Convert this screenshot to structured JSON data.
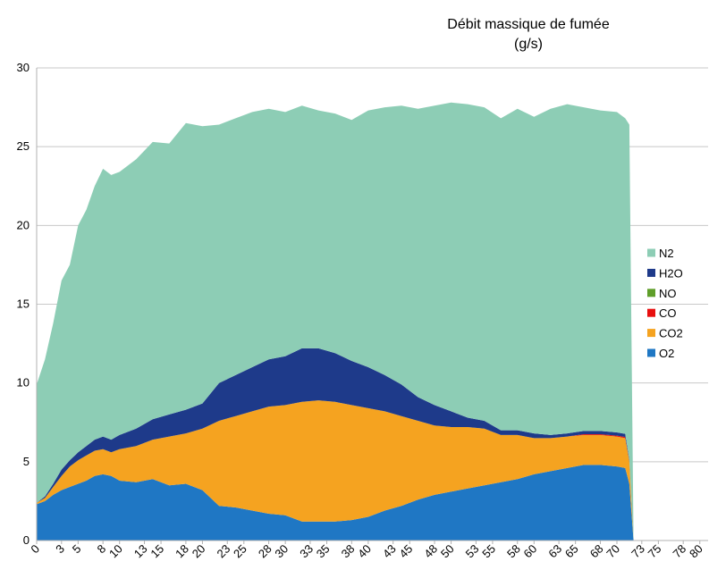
{
  "chart_data": {
    "type": "area",
    "stacked": true,
    "title": "Débit massique de fumée",
    "subtitle": "(g/s)",
    "xlabel": "",
    "ylabel": "",
    "xlim": [
      0,
      81
    ],
    "ylim": [
      0,
      30
    ],
    "yticks": [
      0,
      5,
      10,
      15,
      20,
      25,
      30
    ],
    "xtick_labels": [
      "0",
      "3",
      "5",
      "8",
      "10",
      "13",
      "15",
      "18",
      "20",
      "23",
      "25",
      "28",
      "30",
      "33",
      "35",
      "38",
      "40",
      "43",
      "45",
      "48",
      "50",
      "53",
      "55",
      "58",
      "60",
      "63",
      "65",
      "68",
      "70",
      "73",
      "75",
      "78",
      "80"
    ],
    "grid": {
      "horizontal": true,
      "vertical": false
    },
    "legend_position": "right",
    "total_envelope": {
      "x": [
        0,
        1,
        2,
        3,
        4,
        5,
        6,
        7,
        8,
        9,
        10,
        12,
        14,
        16,
        18,
        20,
        22,
        24,
        26,
        28,
        30,
        32,
        34,
        36,
        38,
        40,
        42,
        44,
        46,
        48,
        50,
        52,
        54,
        56,
        58,
        60,
        62,
        64,
        66,
        68,
        70,
        71,
        71.5,
        72
      ],
      "y": [
        9.9,
        11.5,
        13.8,
        16.5,
        17.5,
        20,
        21,
        22.5,
        23.6,
        23.2,
        23.4,
        24.2,
        25.3,
        25.2,
        26.5,
        26.3,
        26.4,
        26.8,
        27.2,
        27.4,
        27.2,
        27.6,
        27.3,
        27.1,
        26.7,
        27.3,
        27.5,
        27.6,
        27.4,
        27.6,
        27.8,
        27.7,
        27.5,
        26.8,
        27.4,
        26.9,
        27.4,
        27.7,
        27.5,
        27.3,
        27.2,
        26.8,
        26.4,
        0
      ]
    },
    "x": [
      0,
      1,
      2,
      3,
      4,
      5,
      6,
      7,
      8,
      9,
      10,
      12,
      14,
      16,
      18,
      20,
      22,
      24,
      26,
      28,
      30,
      32,
      34,
      36,
      38,
      40,
      42,
      44,
      46,
      48,
      50,
      52,
      54,
      56,
      58,
      60,
      62,
      64,
      66,
      68,
      70,
      71,
      71.5,
      72
    ],
    "series": [
      {
        "name": "O2",
        "color": "#1f77c4",
        "values": [
          2.3,
          2.5,
          2.9,
          3.2,
          3.4,
          3.6,
          3.8,
          4.1,
          4.2,
          4.1,
          3.8,
          3.7,
          3.9,
          3.5,
          3.6,
          3.2,
          2.2,
          2.1,
          1.9,
          1.7,
          1.6,
          1.2,
          1.2,
          1.2,
          1.3,
          1.5,
          1.9,
          2.2,
          2.6,
          2.9,
          3.1,
          3.3,
          3.5,
          3.7,
          3.9,
          4.2,
          4.4,
          4.6,
          4.8,
          4.8,
          4.7,
          4.6,
          3.6,
          0
        ]
      },
      {
        "name": "CO2",
        "color": "#f5a320",
        "values": [
          0.1,
          0.2,
          0.5,
          0.9,
          1.3,
          1.5,
          1.6,
          1.6,
          1.6,
          1.5,
          2.0,
          2.3,
          2.5,
          3.1,
          3.2,
          3.9,
          5.4,
          5.8,
          6.3,
          6.8,
          7.0,
          7.6,
          7.7,
          7.6,
          7.3,
          6.9,
          6.3,
          5.7,
          5.0,
          4.4,
          4.1,
          3.9,
          3.6,
          3.0,
          2.8,
          2.3,
          2.1,
          2.0,
          1.9,
          1.9,
          1.9,
          1.9,
          1.4,
          0
        ]
      },
      {
        "name": "CO",
        "color": "#e8100f",
        "values": [
          0,
          0,
          0,
          0,
          0,
          0,
          0,
          0,
          0,
          0,
          0,
          0,
          0,
          0,
          0,
          0,
          0,
          0,
          0,
          0,
          0,
          0,
          0,
          0,
          0,
          0,
          0,
          0,
          0,
          0,
          0,
          0,
          0,
          0,
          0,
          0,
          0,
          0,
          0.05,
          0.05,
          0.06,
          0.07,
          0.05,
          0
        ]
      },
      {
        "name": "NO",
        "color": "#5f9e2a",
        "values": [
          0,
          0,
          0,
          0,
          0,
          0,
          0,
          0,
          0,
          0,
          0,
          0,
          0,
          0,
          0,
          0,
          0,
          0,
          0,
          0,
          0,
          0,
          0,
          0,
          0,
          0,
          0,
          0,
          0,
          0,
          0,
          0,
          0,
          0,
          0,
          0,
          0,
          0,
          0,
          0,
          0,
          0,
          0,
          0
        ]
      },
      {
        "name": "H2O",
        "color": "#1e3a8a",
        "values": [
          0,
          0.1,
          0.2,
          0.4,
          0.4,
          0.5,
          0.6,
          0.7,
          0.8,
          0.8,
          0.9,
          1.1,
          1.3,
          1.4,
          1.5,
          1.6,
          2.4,
          2.6,
          2.8,
          3.0,
          3.1,
          3.4,
          3.3,
          3.1,
          2.8,
          2.6,
          2.3,
          2.0,
          1.5,
          1.3,
          1.0,
          0.6,
          0.5,
          0.3,
          0.3,
          0.3,
          0.2,
          0.2,
          0.2,
          0.2,
          0.2,
          0.2,
          0.1,
          0
        ]
      },
      {
        "name": "N2",
        "color": "#8dcdb5",
        "values": [
          7.5,
          8.7,
          10.2,
          12.0,
          12.4,
          14.4,
          15.0,
          16.1,
          17.0,
          16.8,
          16.7,
          17.1,
          17.6,
          17.2,
          18.2,
          17.6,
          16.4,
          16.3,
          16.2,
          15.9,
          15.5,
          15.4,
          15.1,
          15.2,
          15.3,
          16.3,
          17.0,
          17.7,
          18.3,
          19.0,
          19.6,
          19.9,
          19.9,
          19.8,
          20.4,
          20.1,
          20.7,
          20.9,
          20.55,
          20.35,
          20.34,
          20.03,
          21.25,
          0
        ]
      }
    ],
    "legend_order": [
      "N2",
      "H2O",
      "NO",
      "CO",
      "CO2",
      "O2"
    ]
  }
}
